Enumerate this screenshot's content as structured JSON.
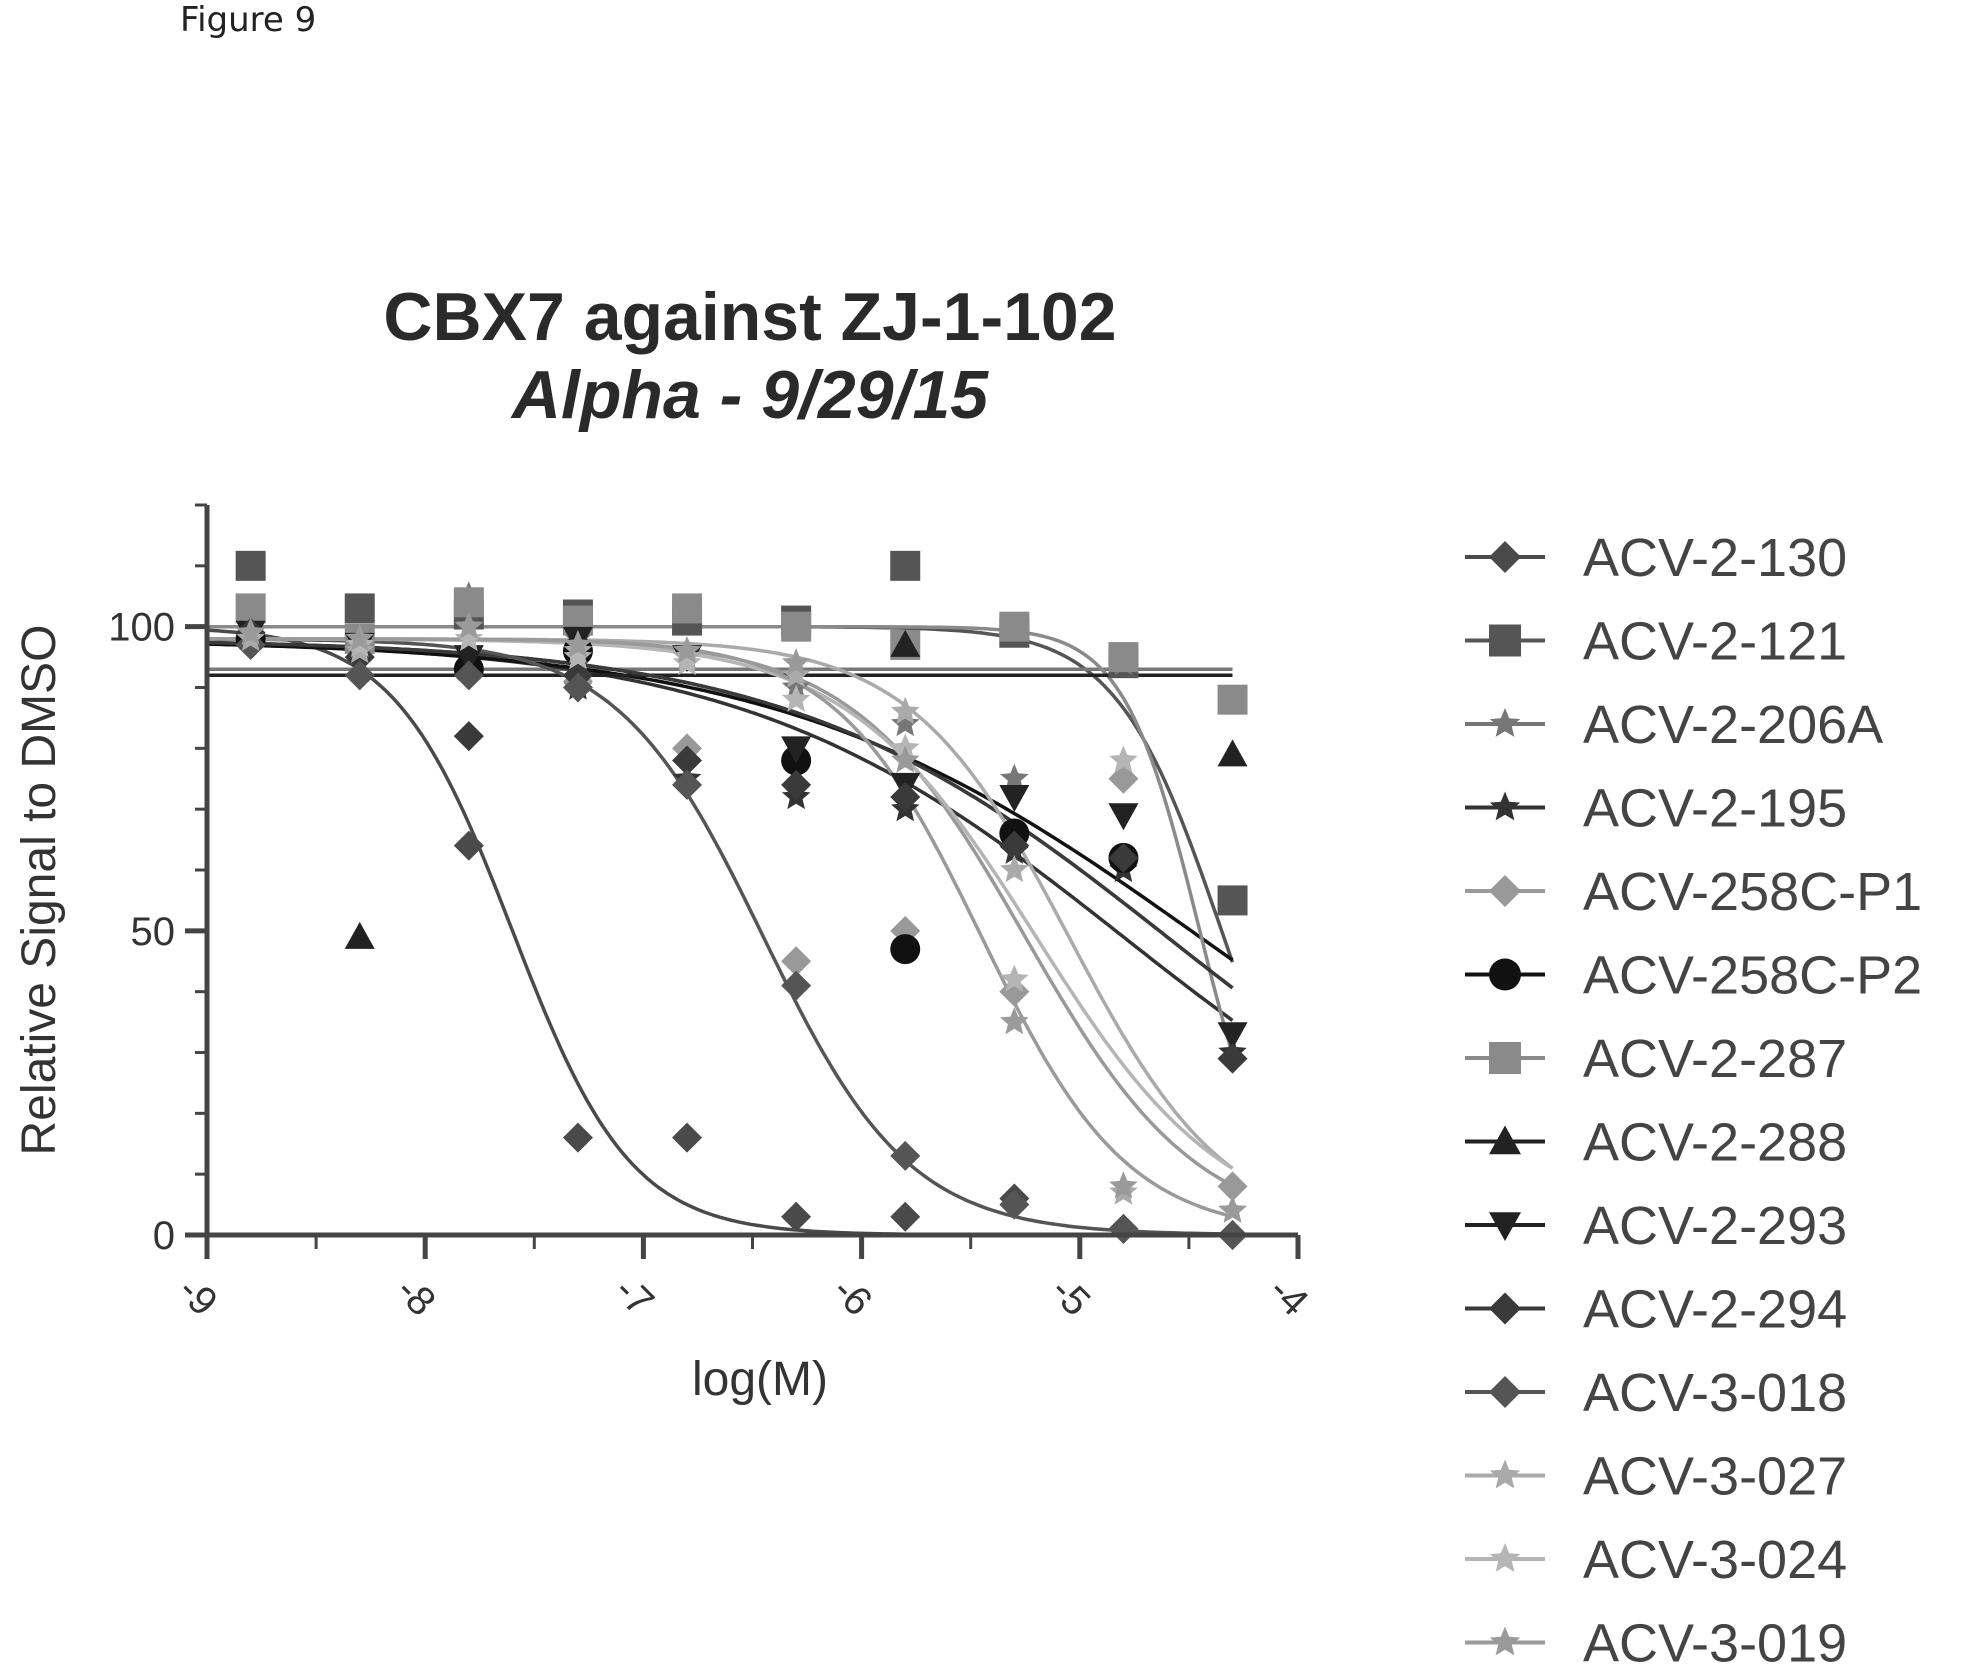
{
  "figure_label": "Figure 9",
  "chart_data": {
    "type": "scatter",
    "title": "CBX7 against ZJ-1-102",
    "subtitle": "Alpha - 9/29/15",
    "xlabel": "log(M)",
    "ylabel": "Relative Signal to DMSO",
    "xlim": [
      -9,
      -4
    ],
    "ylim": [
      0,
      120
    ],
    "xticks": [
      -9,
      -8,
      -7,
      -6,
      -5,
      -4
    ],
    "yticks": [
      0,
      50,
      100
    ],
    "legend_position": "right",
    "series": [
      {
        "name": "ACV-2-130",
        "marker": "diamond",
        "color": "#4a4a4a",
        "x": [
          -8.8,
          -7.8,
          -7.3,
          -6.8,
          -6.3,
          -5.8,
          -5.3,
          -4.8,
          -4.3
        ],
        "y": [
          97,
          64,
          16,
          16,
          3,
          3,
          6,
          1,
          0
        ],
        "fit": {
          "top": 100,
          "bottom": 0,
          "log_ic50": -7.6,
          "hill": -1.6
        }
      },
      {
        "name": "ACV-2-121",
        "marker": "square",
        "color": "#555555",
        "x": [
          -8.8,
          -8.3,
          -7.8,
          -7.3,
          -6.8,
          -6.3,
          -5.8,
          -5.3,
          -4.8,
          -4.3
        ],
        "y": [
          110,
          103,
          102,
          102,
          101,
          101,
          110,
          99,
          94,
          55
        ],
        "fit": {
          "top": 100,
          "bottom": 0,
          "log_ic50": -4.35,
          "hill": -1.8
        }
      },
      {
        "name": "ACV-2-206A",
        "marker": "star",
        "color": "#777777",
        "x": [
          -8.8,
          -8.3,
          -7.8,
          -7.3,
          -6.8,
          -6.3,
          -5.8,
          -5.3,
          -4.8,
          -4.3
        ],
        "y": [
          100,
          97,
          105,
          98,
          95,
          90,
          84,
          75,
          94,
          88
        ],
        "fit": {
          "top": 93,
          "bottom": 93,
          "log_ic50": -6,
          "hill": -1
        }
      },
      {
        "name": "ACV-2-195",
        "marker": "star",
        "color": "#333333",
        "x": [
          -8.8,
          -8.3,
          -7.8,
          -7.3,
          -6.8,
          -6.3,
          -5.8,
          -5.3,
          -4.8,
          -4.3
        ],
        "y": [
          99,
          96,
          93,
          90,
          75,
          72,
          70,
          63,
          60,
          30
        ],
        "fit": {
          "top": 98,
          "bottom": 0,
          "log_ic50": -4.8,
          "hill": -0.5
        }
      },
      {
        "name": "ACV-258C-P1",
        "marker": "diamond",
        "color": "#999999",
        "x": [
          -8.8,
          -8.3,
          -7.8,
          -7.3,
          -6.8,
          -6.3,
          -5.8,
          -5.3,
          -4.8,
          -4.3
        ],
        "y": [
          98,
          95,
          82,
          91,
          80,
          45,
          50,
          40,
          75,
          8
        ],
        "fit": {
          "top": 98,
          "bottom": 0,
          "log_ic50": -5.25,
          "hill": -1.1
        }
      },
      {
        "name": "ACV-258C-P2",
        "marker": "circle",
        "color": "#111111",
        "x": [
          -8.8,
          -7.8,
          -7.3,
          -6.3,
          -5.8,
          -5.3,
          -4.8
        ],
        "y": [
          98,
          93,
          96,
          78,
          47,
          66,
          62
        ],
        "fit": {
          "top": 98,
          "bottom": 0,
          "log_ic50": -4.45,
          "hill": -0.45
        }
      },
      {
        "name": "ACV-2-287",
        "marker": "square",
        "color": "#8a8a8a",
        "x": [
          -8.8,
          -8.3,
          -7.8,
          -7.3,
          -6.8,
          -6.3,
          -5.8,
          -5.3,
          -4.8,
          -4.3
        ],
        "y": [
          103,
          98,
          104,
          101,
          103,
          100,
          97,
          100,
          95,
          88
        ],
        "fit": {
          "top": 100,
          "bottom": 0,
          "log_ic50": -4.45,
          "hill": -2.5
        }
      },
      {
        "name": "ACV-2-288",
        "marker": "triangle",
        "color": "#222222",
        "x": [
          -8.3,
          -5.8,
          -4.3
        ],
        "y": [
          49,
          97,
          79
        ],
        "fit": {
          "top": 92,
          "bottom": 92,
          "log_ic50": -6,
          "hill": -1
        }
      },
      {
        "name": "ACV-2-293",
        "marker": "triangle-down",
        "color": "#222222",
        "x": [
          -8.8,
          -8.3,
          -7.8,
          -7.3,
          -6.8,
          -6.3,
          -5.8,
          -5.3,
          -4.8,
          -4.3
        ],
        "y": [
          99,
          97,
          95,
          98,
          95,
          80,
          74,
          72,
          69,
          33
        ],
        "fit": {
          "top": 98,
          "bottom": 0,
          "log_ic50": -4.6,
          "hill": -0.5
        }
      },
      {
        "name": "ACV-2-294",
        "marker": "diamond",
        "color": "#3a3a3a",
        "x": [
          -8.8,
          -8.3,
          -7.8,
          -7.3,
          -6.8,
          -6.3,
          -5.8,
          -5.3,
          -4.8,
          -4.3
        ],
        "y": [
          99,
          95,
          82,
          92,
          78,
          74,
          72,
          64,
          62,
          29
        ],
        "fit": {
          "top": 98,
          "bottom": 0,
          "log_ic50": -4.6,
          "hill": -0.5
        }
      },
      {
        "name": "ACV-3-018",
        "marker": "diamond",
        "color": "#555555",
        "x": [
          -8.8,
          -8.3,
          -7.8,
          -7.3,
          -6.8,
          -6.3,
          -5.8,
          -5.3,
          -4.8,
          -4.3
        ],
        "y": [
          97,
          92,
          92,
          90,
          74,
          41,
          13,
          5,
          1,
          0
        ],
        "fit": {
          "top": 98,
          "bottom": 0,
          "log_ic50": -6.45,
          "hill": -1.3
        }
      },
      {
        "name": "ACV-3-027",
        "marker": "star",
        "color": "#aaaaaa",
        "x": [
          -8.8,
          -8.3,
          -7.8,
          -7.3,
          -6.8,
          -6.3,
          -5.8,
          -5.3,
          -4.8,
          -4.3
        ],
        "y": [
          98,
          96,
          100,
          96,
          95,
          92,
          86,
          60,
          7,
          4
        ],
        "fit": {
          "top": 98,
          "bottom": 0,
          "log_ic50": -5.05,
          "hill": -1.2
        }
      },
      {
        "name": "ACV-3-024",
        "marker": "star",
        "color": "#b5b5b5",
        "x": [
          -8.8,
          -8.3,
          -7.8,
          -7.3,
          -6.8,
          -6.3,
          -5.8,
          -5.3,
          -4.8,
          -4.3
        ],
        "y": [
          99,
          97,
          98,
          95,
          94,
          88,
          80,
          42,
          78,
          4
        ],
        "fit": {
          "top": 98,
          "bottom": 0,
          "log_ic50": -5.2,
          "hill": -1.0
        }
      },
      {
        "name": "ACV-3-019",
        "marker": "star",
        "color": "#9a9a9a",
        "x": [
          -8.8,
          -8.3,
          -7.8,
          -7.3,
          -6.8,
          -6.3,
          -5.8,
          -5.3,
          -4.8,
          -4.3
        ],
        "y": [
          99,
          98,
          100,
          97,
          96,
          94,
          78,
          35,
          8,
          4
        ],
        "fit": {
          "top": 98,
          "bottom": 0,
          "log_ic50": -5.45,
          "hill": -1.3
        }
      }
    ]
  }
}
